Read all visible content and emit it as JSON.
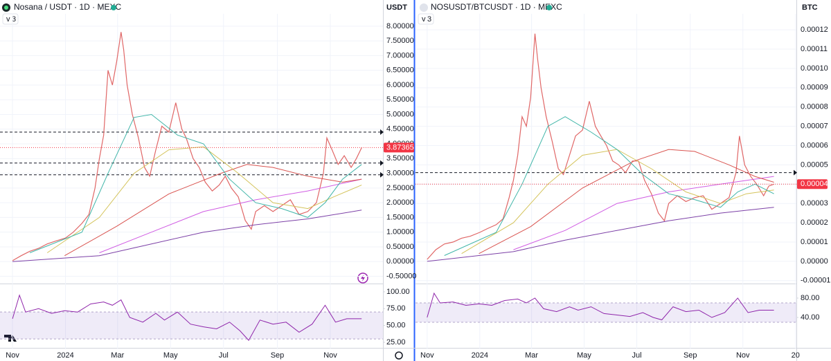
{
  "chart_data": [
    {
      "type": "line",
      "title": "Nosana / USDT · 1D · MEXC",
      "indicator_count": "3",
      "currency": "USDT",
      "xlim": [
        -14.4,
        426.6
      ],
      "xticks": [
        {
          "value": 0,
          "label": "Nov"
        },
        {
          "value": 61,
          "label": "2024"
        },
        {
          "value": 121,
          "label": "Mar"
        },
        {
          "value": 182,
          "label": "May"
        },
        {
          "value": 243,
          "label": "Jul"
        },
        {
          "value": 305,
          "label": "Sep"
        },
        {
          "value": 366,
          "label": "Nov"
        }
      ],
      "ylim": [
        -0.7,
        8.42
      ],
      "yticks": [
        {
          "value": -0.5,
          "label": "-0.50000"
        },
        {
          "value": 0,
          "label": "0.00000"
        },
        {
          "value": 0.5,
          "label": "0.50000"
        },
        {
          "value": 1,
          "label": "1.00000"
        },
        {
          "value": 1.5,
          "label": "1.50000"
        },
        {
          "value": 2,
          "label": "2.00000"
        },
        {
          "value": 2.5,
          "label": "2.50000"
        },
        {
          "value": 3,
          "label": "3.00000"
        },
        {
          "value": 3.5,
          "label": "3.50000"
        },
        {
          "value": 4,
          "label": "4.00000"
        },
        {
          "value": 4.5,
          "label": "4.50000"
        },
        {
          "value": 5,
          "label": "5.00000"
        },
        {
          "value": 5.5,
          "label": "5.50000"
        },
        {
          "value": 6,
          "label": "6.00000"
        },
        {
          "value": 6.5,
          "label": "6.50000"
        },
        {
          "value": 7,
          "label": "7.00000"
        },
        {
          "value": 7.5,
          "label": "7.50000"
        },
        {
          "value": 8,
          "label": "8.00000"
        }
      ],
      "last_value": 3.87365,
      "last_color": "#f23645",
      "levels": [
        4.4,
        3.35,
        2.95
      ],
      "series": [
        {
          "color": "#e06666",
          "x": [
            0,
            10,
            20,
            30,
            40,
            50,
            61,
            70,
            80,
            88,
            95,
            100,
            105,
            110,
            115,
            120,
            125,
            128,
            132,
            138,
            145,
            152,
            158,
            165,
            172,
            180,
            188,
            195,
            200,
            208,
            215,
            222,
            230,
            238,
            245,
            252,
            260,
            268,
            275,
            280,
            290,
            300,
            310,
            320,
            330,
            340,
            350,
            358,
            362,
            368,
            375,
            382,
            390,
            396,
            402
          ],
          "values": [
            0.03,
            0.2,
            0.35,
            0.45,
            0.6,
            0.7,
            0.8,
            1.0,
            1.3,
            1.6,
            2.5,
            3.5,
            4.3,
            6.5,
            6.0,
            6.8,
            7.8,
            7.2,
            6.0,
            5.0,
            4.2,
            3.2,
            2.9,
            3.8,
            4.6,
            4.4,
            5.4,
            4.5,
            4.2,
            3.5,
            3.2,
            2.7,
            2.4,
            2.6,
            2.9,
            2.5,
            2.2,
            1.4,
            1.1,
            1.7,
            1.9,
            1.7,
            1.9,
            2.1,
            1.6,
            1.7,
            2.0,
            3.0,
            4.2,
            3.8,
            3.3,
            3.6,
            3.2,
            3.5,
            3.87
          ]
        },
        {
          "color": "#7b3fa6",
          "x": [
            0,
            100,
            160,
            220,
            280,
            340,
            402
          ],
          "values": [
            0,
            0.2,
            0.6,
            1.0,
            1.25,
            1.45,
            1.75
          ]
        },
        {
          "color": "#d05ce3",
          "x": [
            100,
            160,
            220,
            280,
            340,
            402
          ],
          "values": [
            0.3,
            1.0,
            1.7,
            2.1,
            2.4,
            2.8
          ]
        },
        {
          "color": "#d9534f",
          "x": [
            60,
            120,
            180,
            240,
            270,
            300,
            340,
            380,
            402
          ],
          "values": [
            0.2,
            1.2,
            2.3,
            3.0,
            3.3,
            3.2,
            2.9,
            2.7,
            2.8
          ]
        },
        {
          "color": "#d4c35a",
          "x": [
            40,
            100,
            140,
            180,
            220,
            260,
            300,
            340,
            370,
            402
          ],
          "values": [
            0.3,
            1.5,
            3.0,
            3.8,
            3.9,
            3.0,
            2.0,
            1.8,
            2.2,
            2.6
          ]
        },
        {
          "color": "#3fb5a8",
          "x": [
            20,
            80,
            110,
            140,
            160,
            190,
            220,
            250,
            280,
            310,
            340,
            360,
            380,
            402
          ],
          "values": [
            0.3,
            1.0,
            3.0,
            4.9,
            5.0,
            4.3,
            4.0,
            2.8,
            2.0,
            1.8,
            1.5,
            2.0,
            2.8,
            3.3
          ]
        }
      ],
      "rsi": {
        "color": "#8e24aa",
        "band": [
          30,
          70
        ],
        "ylim": [
          14.7,
          109.2
        ],
        "yticks": [
          {
            "value": 25,
            "label": "25.00"
          },
          {
            "value": 50,
            "label": "50.00"
          },
          {
            "value": 75,
            "label": "75.00"
          },
          {
            "value": 100,
            "label": "100.00"
          }
        ],
        "x": [
          0,
          8,
          15,
          30,
          45,
          60,
          75,
          90,
          105,
          115,
          125,
          135,
          150,
          165,
          175,
          190,
          205,
          220,
          235,
          250,
          262,
          272,
          285,
          300,
          315,
          330,
          345,
          360,
          372,
          385,
          402
        ],
        "values": [
          60,
          95,
          70,
          75,
          68,
          72,
          70,
          82,
          85,
          80,
          88,
          62,
          55,
          68,
          58,
          70,
          52,
          48,
          45,
          55,
          42,
          28,
          58,
          52,
          55,
          40,
          52,
          80,
          55,
          60,
          60
        ]
      }
    },
    {
      "type": "line",
      "title": "NOSUSDT/BTCUSDT · 1D · MEXC",
      "indicator_count": "3",
      "currency": "BTC",
      "xlim": [
        -13.5,
        428
      ],
      "xticks": [
        {
          "value": 0,
          "label": "Nov"
        },
        {
          "value": 61,
          "label": "2024"
        },
        {
          "value": 121,
          "label": "Mar"
        },
        {
          "value": 182,
          "label": "May"
        },
        {
          "value": 243,
          "label": "Jul"
        },
        {
          "value": 305,
          "label": "Sep"
        },
        {
          "value": 366,
          "label": "Nov"
        },
        {
          "value": 427,
          "label": "20"
        }
      ],
      "ylim": [
        -1.08e-05,
        0.0001283
      ],
      "yticks": [
        {
          "value": -1e-05,
          "label": "-0.00001"
        },
        {
          "value": 0,
          "label": "0.00000"
        },
        {
          "value": 1e-05,
          "label": "0.00001"
        },
        {
          "value": 2e-05,
          "label": "0.00002"
        },
        {
          "value": 3e-05,
          "label": "0.00003"
        },
        {
          "value": 4e-05,
          "label": "0.00004"
        },
        {
          "value": 5e-05,
          "label": "0.00005"
        },
        {
          "value": 6e-05,
          "label": "0.00006"
        },
        {
          "value": 7e-05,
          "label": "0.00007"
        },
        {
          "value": 8e-05,
          "label": "0.00008"
        },
        {
          "value": 9e-05,
          "label": "0.00009"
        },
        {
          "value": 0.0001,
          "label": "0.00010"
        },
        {
          "value": 0.00011,
          "label": "0.00011"
        },
        {
          "value": 0.00012,
          "label": "0.00012"
        }
      ],
      "last_value": 4e-05,
      "last_color": "#f23645",
      "levels": [
        4.6e-05
      ],
      "series": [
        {
          "color": "#e06666",
          "x": [
            0,
            10,
            20,
            30,
            40,
            50,
            61,
            70,
            80,
            88,
            95,
            100,
            105,
            110,
            115,
            120,
            125,
            128,
            132,
            138,
            145,
            152,
            158,
            165,
            172,
            180,
            188,
            195,
            200,
            208,
            215,
            222,
            230,
            238,
            245,
            252,
            260,
            268,
            275,
            280,
            290,
            300,
            310,
            320,
            330,
            340,
            350,
            358,
            362,
            368,
            375,
            382,
            390,
            396,
            402
          ],
          "values": [
            1e-06,
            6e-06,
            9e-06,
            1e-05,
            1.2e-05,
            1.3e-05,
            1.5e-05,
            1.7e-05,
            1.9e-05,
            2.2e-05,
            3.3e-05,
            4.2e-05,
            5.5e-05,
            7.5e-05,
            7e-05,
            8.5e-05,
            0.000118,
            0.000105,
            9e-05,
            7.5e-05,
            6.2e-05,
            4.8e-05,
            4.5e-05,
            5.5e-05,
            6.5e-05,
            6.8e-05,
            8.3e-05,
            7e-05,
            6.6e-05,
            6e-05,
            5.2e-05,
            5e-05,
            4.6e-05,
            5.2e-05,
            5.2e-05,
            4.2e-05,
            3.5e-05,
            2.5e-05,
            2.1e-05,
            3e-05,
            3.4e-05,
            3.1e-05,
            3.3e-05,
            3.4e-05,
            2.7e-05,
            3e-05,
            3.3e-05,
            4.6e-05,
            6.5e-05,
            5e-05,
            4.4e-05,
            4e-05,
            3.4e-05,
            3.9e-05,
            4e-05
          ]
        },
        {
          "color": "#7b3fa6",
          "x": [
            0,
            100,
            160,
            220,
            280,
            340,
            402
          ],
          "values": [
            0,
            5e-06,
            1.1e-05,
            1.6e-05,
            2.1e-05,
            2.5e-05,
            2.8e-05
          ]
        },
        {
          "color": "#d05ce3",
          "x": [
            100,
            160,
            220,
            280,
            340,
            402
          ],
          "values": [
            6e-06,
            1.6e-05,
            3e-05,
            3.6e-05,
            4e-05,
            4.4e-05
          ]
        },
        {
          "color": "#d9534f",
          "x": [
            60,
            120,
            180,
            240,
            280,
            310,
            350,
            380,
            402
          ],
          "values": [
            4e-06,
            1.8e-05,
            3.8e-05,
            5.2e-05,
            5.8e-05,
            5.7e-05,
            5e-05,
            4.4e-05,
            4.1e-05
          ]
        },
        {
          "color": "#d4c35a",
          "x": [
            40,
            100,
            140,
            180,
            220,
            260,
            300,
            340,
            370,
            402
          ],
          "values": [
            4e-06,
            2e-05,
            4e-05,
            5.5e-05,
            5.8e-05,
            4.8e-05,
            3.6e-05,
            3e-05,
            3.5e-05,
            3.7e-05
          ]
        },
        {
          "color": "#3fb5a8",
          "x": [
            20,
            80,
            110,
            140,
            160,
            190,
            220,
            250,
            280,
            310,
            340,
            360,
            380,
            402
          ],
          "values": [
            3e-06,
            1.5e-05,
            4e-05,
            7e-05,
            7.5e-05,
            6.7e-05,
            5.8e-05,
            4.5e-05,
            3.5e-05,
            3.2e-05,
            2.8e-05,
            3.6e-05,
            4e-05,
            3.5e-05
          ]
        }
      ],
      "rsi": {
        "color": "#8e24aa",
        "band": [
          30,
          70
        ],
        "ylim": [
          -25.7,
          105.7
        ],
        "yticks": [
          {
            "value": 40,
            "label": "40.00"
          },
          {
            "value": 80,
            "label": "80.00"
          }
        ],
        "x": [
          0,
          8,
          15,
          30,
          45,
          60,
          75,
          90,
          105,
          115,
          125,
          135,
          150,
          165,
          175,
          190,
          205,
          220,
          235,
          250,
          262,
          272,
          285,
          300,
          315,
          330,
          345,
          360,
          372,
          385,
          402
        ],
        "values": [
          40,
          90,
          70,
          72,
          65,
          68,
          65,
          75,
          78,
          70,
          80,
          58,
          52,
          62,
          55,
          62,
          48,
          45,
          42,
          50,
          40,
          35,
          62,
          52,
          55,
          40,
          50,
          80,
          50,
          55,
          55
        ]
      }
    }
  ]
}
